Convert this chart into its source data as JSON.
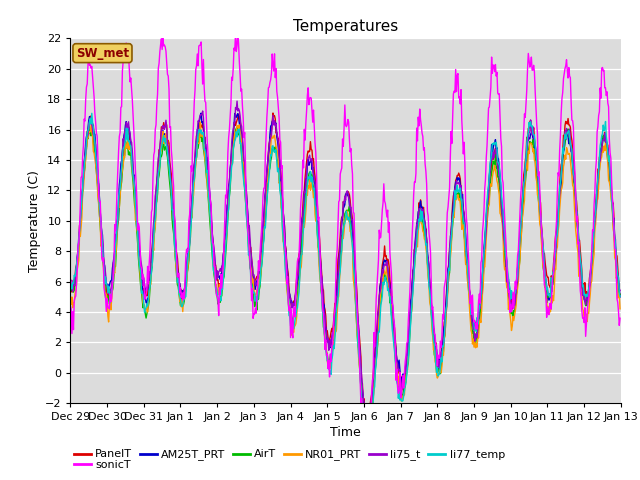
{
  "title": "Temperatures",
  "xlabel": "Time",
  "ylabel": "Temperature (C)",
  "ylim": [
    -2,
    22
  ],
  "annotation": "SW_met",
  "background_color": "#dcdcdc",
  "series": {
    "PanelT": {
      "color": "#dd0000",
      "lw": 1.0
    },
    "AM25T_PRT": {
      "color": "#0000cc",
      "lw": 1.0
    },
    "AirT": {
      "color": "#00bb00",
      "lw": 1.0
    },
    "NR01_PRT": {
      "color": "#ff9900",
      "lw": 1.0
    },
    "li75_t": {
      "color": "#9900cc",
      "lw": 1.0
    },
    "li77_temp": {
      "color": "#00cccc",
      "lw": 1.0
    },
    "sonicT": {
      "color": "#ff00ff",
      "lw": 1.0
    }
  },
  "xtick_labels": [
    "Dec 29",
    "Dec 30",
    "Dec 31",
    "Jan 1",
    "Jan 2",
    "Jan 3",
    "Jan 4",
    "Jan 5",
    "Jan 6",
    "Jan 7",
    "Jan 8",
    "Jan 9",
    "Jan 10",
    "Jan 11",
    "Jan 12",
    "Jan 13"
  ],
  "legend_order": [
    "PanelT",
    "AM25T_PRT",
    "AirT",
    "NR01_PRT",
    "li75_t",
    "li77_temp",
    "sonicT"
  ]
}
